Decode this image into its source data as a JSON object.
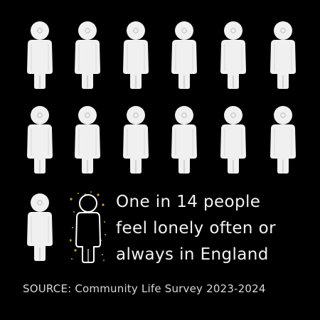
{
  "headline": {
    "line1": "One in 14 people",
    "line2": "feel lonely often or",
    "line3": "always in England"
  },
  "source": "SOURCE: Community Life Survey 2023-2024",
  "figures": {
    "total": 14,
    "highlighted": 1
  },
  "colors": {
    "background": "#000000",
    "figure_fill": "#f0f0f0",
    "highlight_outline": "#ffffff",
    "highlight_accent": "#c9a227"
  }
}
